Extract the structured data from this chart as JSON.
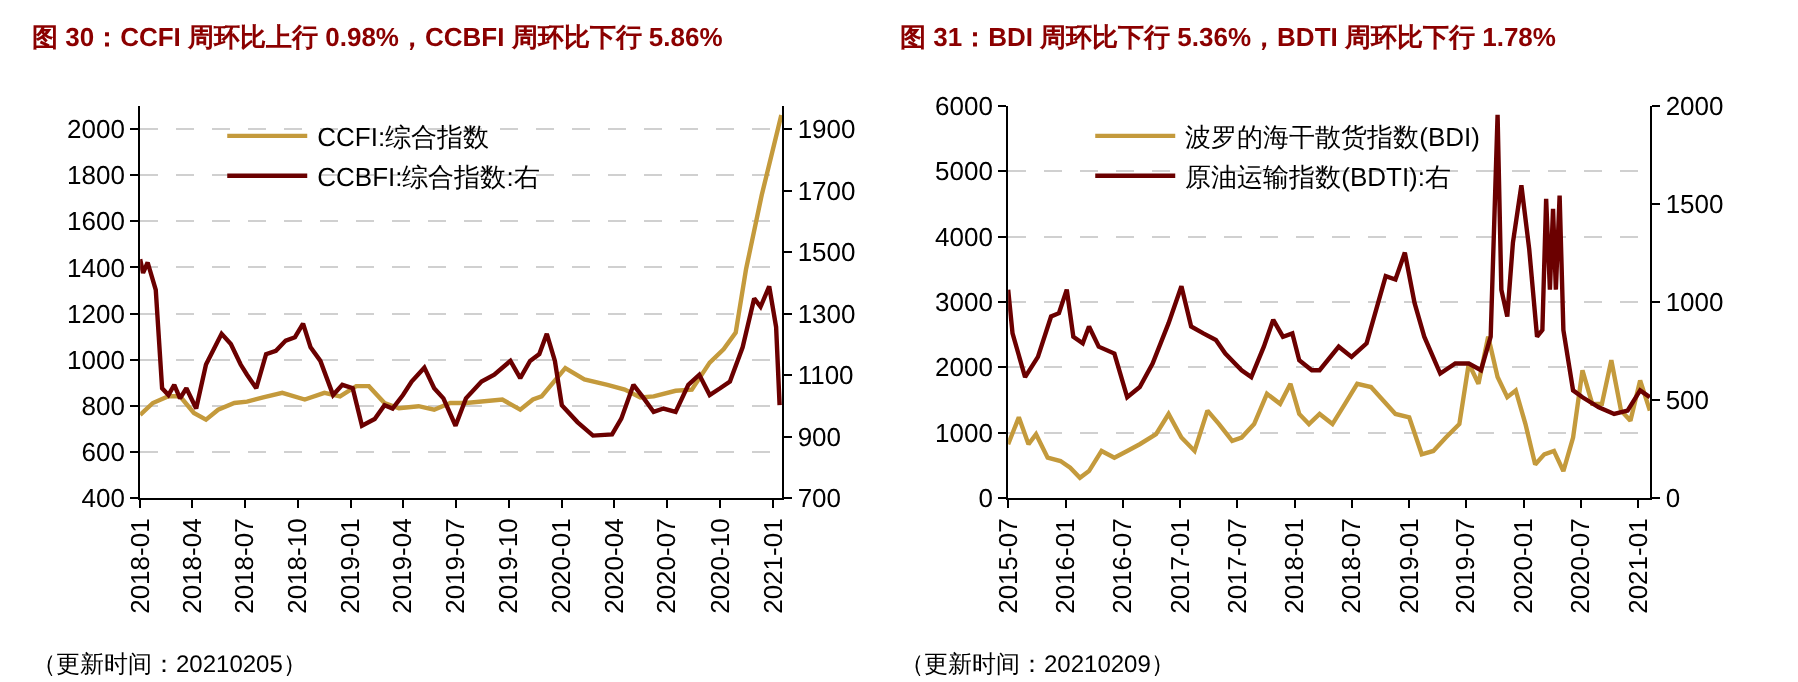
{
  "chart_data": [
    {
      "type": "line",
      "title": "图 30：CCFI 周环比上行 0.98%，CCBFI 周环比下行 5.86%",
      "annotations": [
        "（更新时间：20210205）"
      ],
      "xlim": [
        "2018-01-01",
        "2021-01-17"
      ],
      "xticks": [
        "2018-01",
        "2018-04",
        "2018-07",
        "2018-10",
        "2019-01",
        "2019-04",
        "2019-07",
        "2019-10",
        "2020-01",
        "2020-04",
        "2020-07",
        "2020-10",
        "2021-01"
      ],
      "ylim": [
        400,
        2100
      ],
      "yticks": [
        400,
        600,
        800,
        1000,
        1200,
        1400,
        1600,
        1800,
        2000
      ],
      "y2lim": [
        700,
        1975
      ],
      "y2ticks": [
        700,
        900,
        1100,
        1300,
        1500,
        1700,
        1900
      ],
      "grid": "y",
      "legend": "top left",
      "series": [
        {
          "name": "CCFI:综合指数",
          "color": "#c49a3c",
          "x": [
            "2018-01-01",
            "2018-01-23",
            "2018-02-19",
            "2018-03-11",
            "2018-04-04",
            "2018-04-25",
            "2018-05-16",
            "2018-06-13",
            "2018-07-05",
            "2018-08-02",
            "2018-09-04",
            "2018-10-13",
            "2018-11-16",
            "2018-12-13",
            "2019-01-10",
            "2019-02-01",
            "2019-02-28",
            "2019-03-25",
            "2019-04-28",
            "2019-05-25",
            "2019-06-22",
            "2019-07-19",
            "2019-09-20",
            "2019-10-21",
            "2019-11-12",
            "2019-11-27",
            "2020-01-07",
            "2020-02-09",
            "2020-03-20",
            "2020-04-19",
            "2020-05-16",
            "2020-06-08",
            "2020-07-16",
            "2020-08-13",
            "2020-09-13",
            "2020-10-07",
            "2020-10-28",
            "2020-11-15",
            "2020-12-12",
            "2021-01-15"
          ],
          "values": [
            760,
            812,
            841,
            841,
            769,
            740,
            783,
            812,
            818,
            836,
            856,
            827,
            856,
            841,
            885,
            885,
            812,
            789,
            798,
            783,
            812,
            812,
            827,
            783,
            827,
            841,
            963,
            914,
            891,
            870,
            836,
            841,
            865,
            870,
            987,
            1045,
            1117,
            1393,
            1713,
            2061
          ]
        },
        {
          "name": "CCBFI:综合指数:右",
          "color": "#6b0000",
          "axis": "y2",
          "x": [
            "2018-01-01",
            "2018-01-06",
            "2018-01-14",
            "2018-01-28",
            "2018-02-08",
            "2018-02-19",
            "2018-03-01",
            "2018-03-11",
            "2018-03-22",
            "2018-04-08",
            "2018-04-25",
            "2018-05-22",
            "2018-06-07",
            "2018-06-24",
            "2018-07-05",
            "2018-07-21",
            "2018-08-07",
            "2018-08-24",
            "2018-09-10",
            "2018-09-26",
            "2018-10-10",
            "2018-10-23",
            "2018-11-09",
            "2018-12-01",
            "2018-12-17",
            "2019-01-04",
            "2019-01-20",
            "2019-02-11",
            "2019-02-28",
            "2019-03-14",
            "2019-04-01",
            "2019-04-16",
            "2019-05-08",
            "2019-05-25",
            "2019-06-10",
            "2019-07-01",
            "2019-07-19",
            "2019-08-15",
            "2019-09-06",
            "2019-10-04",
            "2019-10-21",
            "2019-11-07",
            "2019-11-23",
            "2019-12-06",
            "2019-12-20",
            "2020-01-01",
            "2020-01-28",
            "2020-02-24",
            "2020-03-28",
            "2020-04-13",
            "2020-05-04",
            "2020-05-22",
            "2020-06-08",
            "2020-06-25",
            "2020-07-16",
            "2020-08-07",
            "2020-08-26",
            "2020-09-13",
            "2020-10-01",
            "2020-10-18",
            "2020-11-09",
            "2020-11-29",
            "2020-12-10",
            "2020-12-25",
            "2021-01-06",
            "2021-01-12"
          ],
          "values": [
            1477,
            1432,
            1466,
            1377,
            1057,
            1035,
            1068,
            1024,
            1057,
            991,
            1134,
            1234,
            1201,
            1134,
            1101,
            1057,
            1168,
            1179,
            1212,
            1223,
            1267,
            1190,
            1146,
            1035,
            1068,
            1057,
            935,
            957,
            1002,
            991,
            1035,
            1079,
            1124,
            1057,
            1024,
            935,
            1024,
            1079,
            1101,
            1146,
            1090,
            1146,
            1168,
            1234,
            1146,
            1002,
            947,
            903,
            907,
            958,
            1068,
            1024,
            980,
            991,
            980,
            1068,
            1101,
            1035,
            1057,
            1079,
            1190,
            1349,
            1322,
            1388,
            1256,
            1002
          ]
        }
      ]
    },
    {
      "type": "line",
      "title": "图 31：BDI 周环比下行 5.36%，BDTI 周环比下行 1.78%",
      "annotations": [
        "（更新时间：20210209）"
      ],
      "xlim": [
        "2015-07-01",
        "2021-02-09"
      ],
      "xticks": [
        "2015-07",
        "2016-01",
        "2016-07",
        "2017-01",
        "2017-07",
        "2018-01",
        "2018-07",
        "2019-01",
        "2019-07",
        "2020-01",
        "2020-07",
        "2021-01"
      ],
      "ylim": [
        0,
        6000
      ],
      "yticks": [
        0,
        1000,
        2000,
        3000,
        4000,
        5000,
        6000
      ],
      "y2lim": [
        0,
        2000
      ],
      "y2ticks": [
        0,
        500,
        1000,
        1500,
        2000
      ],
      "grid": "y",
      "legend": "top left",
      "series": [
        {
          "name": "波罗的海干散货指数(BDI)",
          "color": "#c49a3c",
          "x": [
            "2015-07-01",
            "2015-08-04",
            "2015-09-04",
            "2015-09-28",
            "2015-11-04",
            "2015-12-15",
            "2016-01-15",
            "2016-02-15",
            "2016-03-15",
            "2016-04-24",
            "2016-06-04",
            "2016-07-15",
            "2016-08-24",
            "2016-10-15",
            "2016-11-24",
            "2017-01-04",
            "2017-02-15",
            "2017-03-28",
            "2017-05-04",
            "2017-06-15",
            "2017-07-15",
            "2017-08-24",
            "2017-10-04",
            "2017-11-15",
            "2017-12-18",
            "2018-01-15",
            "2018-02-15",
            "2018-03-21",
            "2018-05-01",
            "2018-06-10",
            "2018-07-19",
            "2018-09-01",
            "2018-10-10",
            "2018-11-18",
            "2019-01-01",
            "2019-02-10",
            "2019-03-19",
            "2019-04-28",
            "2019-06-10",
            "2019-07-10",
            "2019-08-10",
            "2019-09-10",
            "2019-10-10",
            "2019-11-10",
            "2019-12-07",
            "2020-01-07",
            "2020-02-07",
            "2020-03-07",
            "2020-04-07",
            "2020-05-07",
            "2020-06-07",
            "2020-07-07",
            "2020-08-07",
            "2020-09-07",
            "2020-10-07",
            "2020-11-07",
            "2020-12-07",
            "2021-01-07",
            "2021-02-07"
          ],
          "values": [
            823,
            1235,
            823,
            977,
            617,
            566,
            463,
            309,
            412,
            720,
            617,
            720,
            823,
            977,
            1286,
            926,
            720,
            1338,
            1132,
            875,
            926,
            1132,
            1595,
            1441,
            1749,
            1286,
            1132,
            1286,
            1132,
            1441,
            1749,
            1698,
            1492,
            1286,
            1235,
            669,
            720,
            926,
            1132,
            2058,
            1749,
            2470,
            1852,
            1544,
            1646,
            1132,
            514,
            669,
            720,
            412,
            926,
            1955,
            1441,
            1441,
            2109,
            1338,
            1183,
            1800,
            1338
          ]
        },
        {
          "name": "原油运输指数(BDTI):右",
          "color": "#6b0000",
          "axis": "y2",
          "x": [
            "2015-07-01",
            "2015-07-15",
            "2015-08-24",
            "2015-10-04",
            "2015-11-15",
            "2015-12-10",
            "2016-01-04",
            "2016-01-25",
            "2016-02-24",
            "2016-03-15",
            "2016-04-15",
            "2016-06-04",
            "2016-07-15",
            "2016-08-24",
            "2016-10-04",
            "2016-11-24",
            "2017-01-04",
            "2017-02-04",
            "2017-03-15",
            "2017-04-24",
            "2017-05-24",
            "2017-07-15",
            "2017-08-15",
            "2017-09-24",
            "2017-10-24",
            "2017-11-24",
            "2017-12-24",
            "2018-01-15",
            "2018-02-24",
            "2018-03-21",
            "2018-05-21",
            "2018-07-01",
            "2018-08-18",
            "2018-10-18",
            "2018-11-18",
            "2018-12-18",
            "2019-01-18",
            "2019-02-18",
            "2019-04-10",
            "2019-05-28",
            "2019-07-10",
            "2019-08-18",
            "2019-09-18",
            "2019-10-10",
            "2019-10-22",
            "2019-11-10",
            "2019-11-28",
            "2019-12-25",
            "2020-01-19",
            "2020-02-13",
            "2020-03-01",
            "2020-03-13",
            "2020-03-25",
            "2020-04-04",
            "2020-04-13",
            "2020-04-25",
            "2020-05-07",
            "2020-06-07",
            "2020-07-07",
            "2020-08-28",
            "2020-10-16",
            "2020-11-28",
            "2021-01-07",
            "2021-02-07"
          ],
          "values": [
            1063,
            840,
            617,
            720,
            926,
            943,
            1063,
            823,
            789,
            875,
            772,
            737,
            514,
            566,
            686,
            892,
            1080,
            875,
            840,
            806,
            737,
            652,
            617,
            772,
            909,
            823,
            840,
            703,
            652,
            652,
            772,
            720,
            789,
            1132,
            1115,
            1252,
            995,
            823,
            635,
            686,
            686,
            652,
            823,
            1955,
            1063,
            926,
            1303,
            1595,
            1269,
            823,
            857,
            1526,
            1063,
            1475,
            1063,
            1543,
            857,
            549,
            514,
            463,
            429,
            446,
            549,
            514
          ]
        }
      ]
    }
  ]
}
